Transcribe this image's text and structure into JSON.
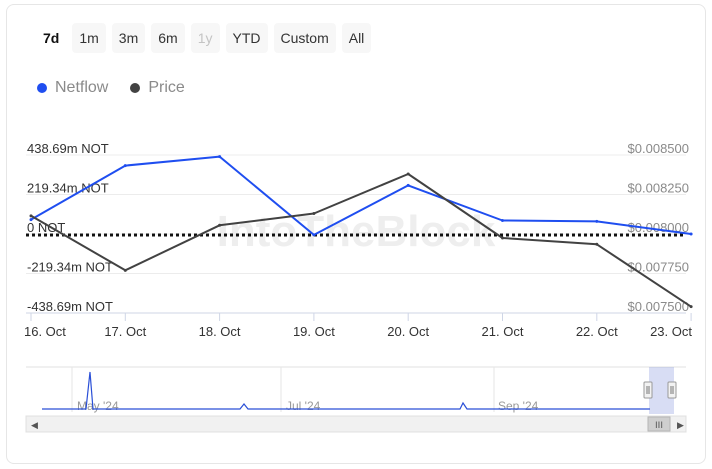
{
  "range_buttons": [
    "7d",
    "1m",
    "3m",
    "6m",
    "1y",
    "YTD",
    "Custom",
    "All"
  ],
  "active_range": "7d",
  "disabled_range": "1y",
  "legend": [
    {
      "label": "Netflow",
      "color": "#1f4ef0"
    },
    {
      "label": "Price",
      "color": "#424242"
    }
  ],
  "watermark": "IntoTheBlock",
  "chart_data": {
    "type": "line",
    "x": [
      "16. Oct",
      "17. Oct",
      "18. Oct",
      "19. Oct",
      "20. Oct",
      "21. Oct",
      "22. Oct",
      "23. Oct"
    ],
    "y_left_ticks": [
      "438.69m NOT",
      "219.34m NOT",
      "0 NOT",
      "-219.34m NOT",
      "-438.69m NOT"
    ],
    "y_left_range": [
      -438.69,
      438.69
    ],
    "y_right_ticks": [
      "$0.008500",
      "$0.008250",
      "$0.008000",
      "$0.007750",
      "$0.007500"
    ],
    "y_right_range": [
      0.0075,
      0.0085
    ],
    "series": [
      {
        "name": "Netflow",
        "axis": "left",
        "color": "#1f4ef0",
        "values": [
          80,
          380,
          430,
          -5,
          270,
          75,
          70,
          0
        ]
      },
      {
        "name": "Price",
        "axis": "right",
        "color": "#424242",
        "values": [
          0.008115,
          0.00777,
          0.008055,
          0.00813,
          0.00838,
          0.007975,
          0.007935,
          0.00754
        ]
      }
    ]
  },
  "navigator": {
    "labels": [
      "May '24",
      "Jul '24",
      "Sep '24"
    ],
    "left_arrow": "◀",
    "right_arrow": "▶",
    "grip": "III"
  }
}
